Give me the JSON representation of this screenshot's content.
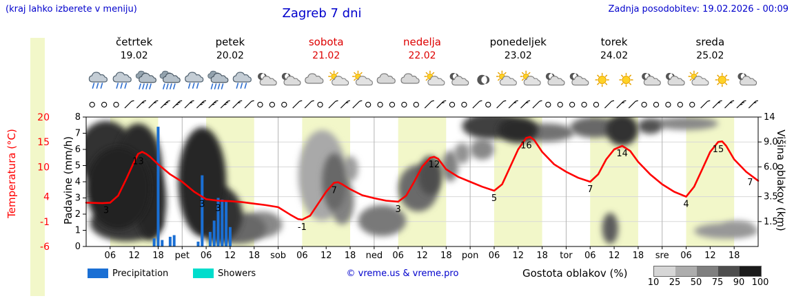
{
  "header": {
    "hint": "(kraj lahko izberete v meniju)",
    "title": "Zagreb 7 dni",
    "updated": "Zadnja posodobitev: 19.02.2026 - 00:09"
  },
  "axes": {
    "temperature_label": "Temperatura (°C)",
    "precipitation_label": "Padavine (mm/h)",
    "cloud_height_label": "Višina oblakov (km)"
  },
  "legend": {
    "precipitation": "Precipitation",
    "showers": "Showers",
    "credit": "© vreme.us & vreme.pro",
    "cloud_density": "Gostota oblakov (%)",
    "cloud_scale_labels": [
      "10",
      "25",
      "50",
      "75",
      "90",
      "100"
    ],
    "cloud_scale_colors": [
      "#d6d6d6",
      "#adadad",
      "#7f7f7f",
      "#4d4d4d",
      "#1a1a1a"
    ]
  },
  "colors": {
    "accent_blue": "#0000cc",
    "temperature_red": "#ff0000",
    "precipitation_blue": "#1a6fd4",
    "showers_cyan": "#00ddcc",
    "daylight_band": "#f2f7c9"
  },
  "chart_data": {
    "type": "meteogram",
    "hours_total": 168,
    "daylight_hours": [
      6,
      18
    ],
    "days": [
      {
        "name": "četrtek",
        "date": "19.02",
        "color": "#000000"
      },
      {
        "name": "petek",
        "date": "20.02",
        "color": "#000000"
      },
      {
        "name": "sobota",
        "date": "21.02",
        "color": "#dd0000"
      },
      {
        "name": "nedelja",
        "date": "22.02",
        "color": "#dd0000"
      },
      {
        "name": "ponedeljek",
        "date": "23.02",
        "color": "#000000"
      },
      {
        "name": "torek",
        "date": "24.02",
        "color": "#000000"
      },
      {
        "name": "sreda",
        "date": "25.02",
        "color": "#000000"
      }
    ],
    "x_ticks": [
      {
        "t": 6,
        "label": "06"
      },
      {
        "t": 12,
        "label": "12"
      },
      {
        "t": 18,
        "label": "18"
      },
      {
        "t": 24,
        "label": "pet"
      },
      {
        "t": 30,
        "label": "06"
      },
      {
        "t": 36,
        "label": "12"
      },
      {
        "t": 42,
        "label": "18"
      },
      {
        "t": 48,
        "label": "sob"
      },
      {
        "t": 54,
        "label": "06"
      },
      {
        "t": 60,
        "label": "12"
      },
      {
        "t": 66,
        "label": "18"
      },
      {
        "t": 72,
        "label": "ned"
      },
      {
        "t": 78,
        "label": "06"
      },
      {
        "t": 84,
        "label": "12"
      },
      {
        "t": 90,
        "label": "18"
      },
      {
        "t": 96,
        "label": "pon"
      },
      {
        "t": 102,
        "label": "06"
      },
      {
        "t": 108,
        "label": "12"
      },
      {
        "t": 114,
        "label": "18"
      },
      {
        "t": 120,
        "label": "tor"
      },
      {
        "t": 126,
        "label": "06"
      },
      {
        "t": 132,
        "label": "12"
      },
      {
        "t": 138,
        "label": "18"
      },
      {
        "t": 144,
        "label": "sre"
      },
      {
        "t": 150,
        "label": "06"
      },
      {
        "t": 156,
        "label": "12"
      },
      {
        "t": 162,
        "label": "18"
      }
    ],
    "precip_ticks": [
      "8",
      "7",
      "6",
      "5",
      "4",
      "3",
      "2",
      "1",
      "0"
    ],
    "temp_ticks": [
      {
        "label": "20",
        "mm": 8
      },
      {
        "label": "15",
        "mm": 6.46
      },
      {
        "label": "10",
        "mm": 4.92
      },
      {
        "label": "4",
        "mm": 3.08
      },
      {
        "label": "-1",
        "mm": 1.54
      },
      {
        "label": "-6",
        "mm": 0
      }
    ],
    "cloud_ticks": [
      {
        "label": "14",
        "mm": 8
      },
      {
        "label": "9.0",
        "mm": 6.46
      },
      {
        "label": "6.0",
        "mm": 4.92
      },
      {
        "label": "3.5",
        "mm": 3.08
      },
      {
        "label": "1.5",
        "mm": 1.54
      }
    ],
    "temp_axis_range_c": [
      -6,
      20
    ],
    "precip_axis_range_mm": [
      0,
      8
    ],
    "temperature_series": [
      [
        0,
        2.8
      ],
      [
        4,
        2.7
      ],
      [
        6,
        2.8
      ],
      [
        8,
        4.2
      ],
      [
        10,
        7.5
      ],
      [
        12,
        11
      ],
      [
        13,
        12.6
      ],
      [
        14,
        13
      ],
      [
        15,
        12.6
      ],
      [
        16,
        12
      ],
      [
        18,
        10.5
      ],
      [
        21,
        8.5
      ],
      [
        24,
        7
      ],
      [
        27,
        5
      ],
      [
        30,
        3.5
      ],
      [
        33,
        3.2
      ],
      [
        36,
        3.1
      ],
      [
        39,
        2.9
      ],
      [
        42,
        2.6
      ],
      [
        45,
        2.3
      ],
      [
        48,
        1.9
      ],
      [
        51,
        0.4
      ],
      [
        53,
        -0.5
      ],
      [
        54,
        -0.6
      ],
      [
        56,
        0.2
      ],
      [
        58,
        2.6
      ],
      [
        60,
        5
      ],
      [
        62,
        6.8
      ],
      [
        63,
        6.9
      ],
      [
        64,
        6.5
      ],
      [
        66,
        5.5
      ],
      [
        69,
        4.3
      ],
      [
        72,
        3.7
      ],
      [
        75,
        3.2
      ],
      [
        78,
        3
      ],
      [
        80,
        4.2
      ],
      [
        82,
        7
      ],
      [
        84,
        10
      ],
      [
        86,
        11.8
      ],
      [
        87,
        12
      ],
      [
        88,
        11.6
      ],
      [
        90,
        9.5
      ],
      [
        93,
        8
      ],
      [
        96,
        7
      ],
      [
        99,
        6
      ],
      [
        102,
        5.2
      ],
      [
        104,
        6.5
      ],
      [
        106,
        10
      ],
      [
        108,
        13.5
      ],
      [
        110,
        15.8
      ],
      [
        111,
        16
      ],
      [
        112,
        15.4
      ],
      [
        114,
        13
      ],
      [
        117,
        10.5
      ],
      [
        120,
        9
      ],
      [
        123,
        7.8
      ],
      [
        126,
        7
      ],
      [
        128,
        8.5
      ],
      [
        130,
        11.5
      ],
      [
        132,
        13.5
      ],
      [
        134,
        14.2
      ],
      [
        136,
        13.2
      ],
      [
        138,
        11
      ],
      [
        141,
        8.5
      ],
      [
        144,
        6.5
      ],
      [
        147,
        5
      ],
      [
        150,
        4
      ],
      [
        152,
        6
      ],
      [
        154,
        9.5
      ],
      [
        156,
        13
      ],
      [
        158,
        15
      ],
      [
        159,
        15.1
      ],
      [
        160,
        14.2
      ],
      [
        162,
        11.5
      ],
      [
        165,
        9
      ],
      [
        168,
        7.2
      ]
    ],
    "temperature_labels": [
      {
        "t": 5,
        "v": "3"
      },
      {
        "t": 13,
        "v": "13"
      },
      {
        "t": 29,
        "v": "3"
      },
      {
        "t": 33,
        "v": "3"
      },
      {
        "t": 54,
        "v": "-1"
      },
      {
        "t": 62,
        "v": "7"
      },
      {
        "t": 78,
        "v": "3"
      },
      {
        "t": 87,
        "v": "12"
      },
      {
        "t": 102,
        "v": "5"
      },
      {
        "t": 110,
        "v": "16"
      },
      {
        "t": 126,
        "v": "7"
      },
      {
        "t": 134,
        "v": "14"
      },
      {
        "t": 150,
        "v": "4"
      },
      {
        "t": 158,
        "v": "15"
      },
      {
        "t": 166,
        "v": "7"
      }
    ],
    "precipitation_bars": [
      [
        17,
        0.5
      ],
      [
        18,
        7.4
      ],
      [
        19,
        0.4
      ],
      [
        21,
        0.6
      ],
      [
        22,
        0.7
      ],
      [
        28,
        0.3
      ],
      [
        29,
        4.4
      ],
      [
        31,
        0.9
      ],
      [
        32,
        1.6
      ],
      [
        33,
        3
      ],
      [
        34,
        2.9
      ],
      [
        35,
        2.8
      ],
      [
        36,
        1.2
      ]
    ],
    "cloud_blobs": [
      [
        5,
        0.72,
        7,
        0.25,
        85
      ],
      [
        8,
        0.45,
        8,
        0.32,
        92
      ],
      [
        13,
        0.6,
        6,
        0.35,
        88
      ],
      [
        10,
        0.18,
        9,
        0.14,
        80
      ],
      [
        16,
        0.35,
        4,
        0.3,
        90
      ],
      [
        29,
        0.5,
        6,
        0.42,
        90
      ],
      [
        33,
        0.25,
        6,
        0.22,
        85
      ],
      [
        38,
        0.14,
        7,
        0.12,
        60
      ],
      [
        44,
        0.17,
        5,
        0.1,
        45
      ],
      [
        59,
        0.55,
        6,
        0.35,
        30
      ],
      [
        62,
        0.5,
        3,
        0.22,
        60
      ],
      [
        64,
        0.35,
        3,
        0.18,
        48
      ],
      [
        66,
        0.6,
        2,
        0.1,
        35
      ],
      [
        74,
        0.2,
        6,
        0.12,
        52
      ],
      [
        83,
        0.45,
        5,
        0.18,
        58
      ],
      [
        86,
        0.55,
        3,
        0.15,
        72
      ],
      [
        91,
        0.62,
        2,
        0.12,
        48
      ],
      [
        94,
        0.72,
        2,
        0.08,
        40
      ],
      [
        101,
        0.93,
        7,
        0.1,
        78
      ],
      [
        108,
        0.9,
        5,
        0.1,
        88
      ],
      [
        115,
        0.88,
        7,
        0.07,
        55
      ],
      [
        99,
        0.75,
        3,
        0.08,
        45
      ],
      [
        127,
        0.92,
        6,
        0.08,
        60
      ],
      [
        134,
        0.9,
        4,
        0.12,
        85
      ],
      [
        131,
        0.14,
        2,
        0.12,
        65
      ],
      [
        141,
        0.93,
        3,
        0.06,
        70
      ],
      [
        150,
        0.95,
        8,
        0.05,
        45
      ],
      [
        160,
        0.12,
        8,
        0.06,
        38
      ],
      [
        163,
        0.15,
        4,
        0.05,
        30
      ]
    ],
    "weather_icons": [
      "rain",
      "rain",
      "heavy-rain",
      "heavy-rain",
      "rain",
      "heavy-rain",
      "rain",
      "moon-cloud",
      "moon-cloud",
      "cloud",
      "sun-cloud",
      "sun-cloud",
      "cloud",
      "cloud",
      "sun-cloud",
      "moon-cloud",
      "moon",
      "sun-cloud",
      "sun-cloud",
      "moon-cloud",
      "moon-cloud",
      "sun",
      "sun",
      "moon-cloud",
      "moon-cloud",
      "sun-cloud",
      "sun",
      "moon-cloud"
    ],
    "wind_symbols": [
      "o",
      "o",
      "o",
      "b1",
      "b2",
      "b2",
      "b3",
      "b3",
      "b2",
      "b3",
      "b3",
      "b3",
      "b2",
      "b1",
      "o",
      "o",
      "o",
      "b1",
      "b1",
      "o",
      "b1",
      "b2",
      "b1",
      "o",
      "o",
      "o",
      "o",
      "o",
      "b1",
      "b2",
      "o",
      "o",
      "b1",
      "o",
      "b1",
      "b2",
      "b2",
      "b1",
      "o",
      "o",
      "o",
      "o",
      "o",
      "b1",
      "b2",
      "b1",
      "o",
      "o",
      "o",
      "o",
      "o",
      "b1",
      "b2",
      "b2",
      "b3",
      "b2"
    ]
  }
}
